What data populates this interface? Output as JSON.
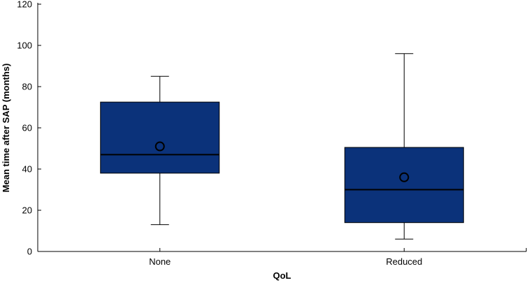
{
  "chart_data": {
    "type": "box",
    "title": "",
    "xlabel": "QoL",
    "ylabel": "Mean time after SAP (months)",
    "ylim": [
      0,
      120
    ],
    "yticks": [
      0,
      20,
      40,
      60,
      80,
      100,
      120
    ],
    "grid": false,
    "categories": [
      "None",
      "Reduced"
    ],
    "boxes": [
      {
        "category": "None",
        "whisker_low": 13,
        "q1": 38,
        "median": 47,
        "q3": 72.5,
        "whisker_high": 85,
        "mean": 51
      },
      {
        "category": "Reduced",
        "whisker_low": 6,
        "q1": 14,
        "median": 30,
        "q3": 50.5,
        "whisker_high": 96,
        "mean": 36
      }
    ],
    "colors": {
      "box_fill": "#0b327a",
      "stroke": "#000000"
    }
  }
}
